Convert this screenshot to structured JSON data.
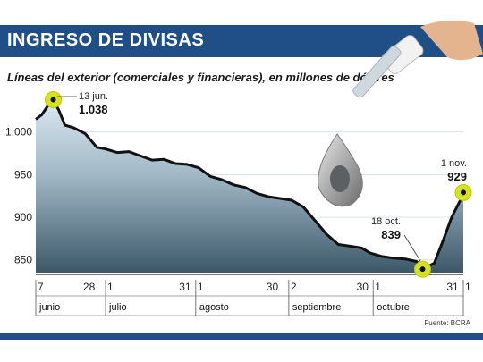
{
  "header": {
    "title": "INGRESO DE DIVISAS"
  },
  "subtitle": "Líneas del exterior (comerciales y financieras), en millones de dólares",
  "source": "Fuente: BCRA",
  "colors": {
    "header_bg": "#1f4f86",
    "line": "#111111",
    "highlight": "#d6e21a",
    "area_top": "#dbe8f1",
    "area_bottom": "#3c5868"
  },
  "chart_data": {
    "type": "area",
    "ylim": [
      835,
      1050
    ],
    "yticks": [
      {
        "value": 1000,
        "label": "1.000"
      },
      {
        "value": 950,
        "label": "950"
      },
      {
        "value": 900,
        "label": "900"
      },
      {
        "value": 850,
        "label": "850"
      }
    ],
    "x_ticks": [
      "7",
      "28",
      "1",
      "31",
      "1",
      "30",
      "2",
      "30",
      "1",
      "31",
      "1"
    ],
    "months": [
      "junio",
      "julio",
      "agosto",
      "septiembre",
      "octubre"
    ],
    "series": [
      {
        "x": [
          "2012-06-07",
          "2012-06-09",
          "2012-06-11",
          "2012-06-13",
          "2012-06-15",
          "2012-06-17",
          "2012-06-20",
          "2012-06-24",
          "2012-06-28",
          "2012-07-01",
          "2012-07-05",
          "2012-07-09",
          "2012-07-13",
          "2012-07-17",
          "2012-07-21",
          "2012-07-25",
          "2012-07-29",
          "2012-08-02",
          "2012-08-06",
          "2012-08-10",
          "2012-08-14",
          "2012-08-18",
          "2012-08-22",
          "2012-08-26",
          "2012-08-30",
          "2012-09-03",
          "2012-09-07",
          "2012-09-11",
          "2012-09-15",
          "2012-09-19",
          "2012-09-23",
          "2012-09-27",
          "2012-09-30",
          "2012-10-04",
          "2012-10-08",
          "2012-10-12",
          "2012-10-16",
          "2012-10-18",
          "2012-10-22",
          "2012-10-25",
          "2012-10-28",
          "2012-10-31",
          "2012-11-01"
        ],
        "values": [
          1015,
          1020,
          1030,
          1038,
          1025,
          1008,
          1005,
          998,
          982,
          980,
          976,
          977,
          972,
          967,
          968,
          963,
          962,
          958,
          948,
          944,
          938,
          935,
          928,
          924,
          922,
          920,
          912,
          896,
          880,
          868,
          866,
          864,
          858,
          854,
          852,
          851,
          848,
          839,
          846,
          872,
          900,
          920,
          929
        ]
      }
    ],
    "annotations": [
      {
        "date": "13 jun.",
        "value": "1.038"
      },
      {
        "date": "18 oct.",
        "value": "839"
      },
      {
        "date": "1 nov.",
        "value": "929"
      }
    ]
  }
}
